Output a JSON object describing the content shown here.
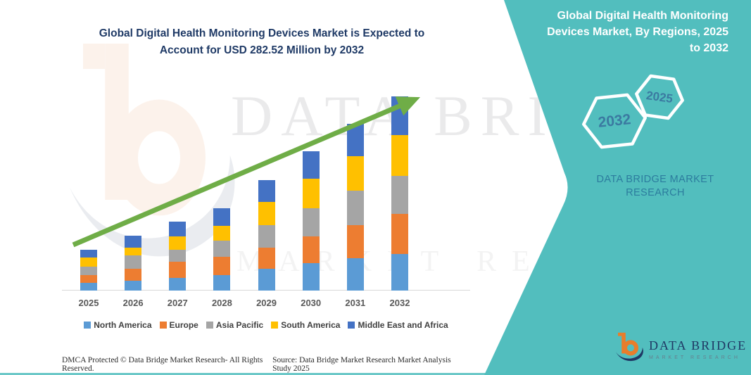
{
  "chart": {
    "title": "Global Digital Health Monitoring Devices Market is Expected to Account for USD 282.52 Million by 2032"
  },
  "chart_data": {
    "type": "bar",
    "stacked": true,
    "title": "Global Digital Health Monitoring Devices Market is Expected to Account for USD 282.52 Million by 2032",
    "unit": "USD Million",
    "categories": [
      "2025",
      "2026",
      "2027",
      "2028",
      "2029",
      "2030",
      "2031",
      "2032"
    ],
    "series": [
      {
        "name": "North America",
        "color": "#5B9BD5",
        "values": [
          11.0,
          14.3,
          18.4,
          22.9,
          31.5,
          40.0,
          46.8,
          53.72
        ]
      },
      {
        "name": "Europe",
        "color": "#ED7D31",
        "values": [
          12.0,
          17.1,
          23.3,
          26.3,
          30.7,
          39.2,
          48.9,
          58.1
        ]
      },
      {
        "name": "Asia Pacific",
        "color": "#A5A5A5",
        "values": [
          12.0,
          19.8,
          17.7,
          23.3,
          33.5,
          40.3,
          49.5,
          55.6
        ]
      },
      {
        "name": "South America",
        "color": "#FFC000",
        "values": [
          13.0,
          11.0,
          19.8,
          22.2,
          33.1,
          43.3,
          50.2,
          58.7
        ]
      },
      {
        "name": "Middle East and Africa",
        "color": "#4472C4",
        "values": [
          11.6,
          17.7,
          21.2,
          25.6,
          31.8,
          40.0,
          47.1,
          56.4
        ]
      }
    ],
    "totals_estimated": [
      59.6,
      79.9,
      100.4,
      120.3,
      160.6,
      202.8,
      242.5,
      282.52
    ],
    "ylim": [
      0,
      290
    ],
    "grid": false,
    "legend_position": "bottom",
    "annotations": [
      "green upward trend arrow across bar tops"
    ]
  },
  "side_panel": {
    "title": "Global Digital Health Monitoring Devices Market, By Regions, 2025 to 2032",
    "hexagons": [
      {
        "label": "2032"
      },
      {
        "label": "2025"
      }
    ],
    "caption": "DATA BRIDGE MARKET RESEARCH",
    "logo": {
      "name": "DATA BRIDGE",
      "sub": "MARKET RESEARCH"
    }
  },
  "watermark": {
    "line1": "DATA BRIDGE",
    "line2": "MARKET RESEARCH"
  },
  "footer": {
    "left": "DMCA Protected © Data Bridge Market Research-  All Rights Reserved.",
    "source": "Source: Data Bridge Market Research  Market Analysis Study 2025"
  },
  "theme": {
    "teal_bg": "#52BEBE",
    "title_navy": "#1F3A66",
    "arrow_green": "#6FAD47",
    "axis_gray": "#D9D9D9",
    "label_gray": "#595959",
    "legend_text": "#404040",
    "hex_text": "#3B7AA1",
    "caption_teal": "#2C7C9E",
    "logo_navy": "#1F3864",
    "logo_orange": "#E87D2B"
  }
}
